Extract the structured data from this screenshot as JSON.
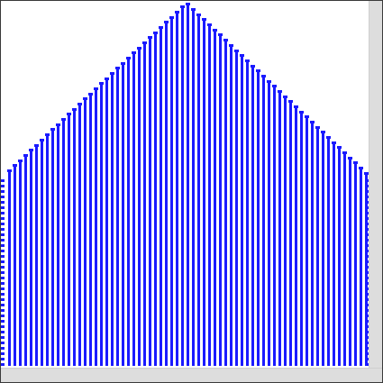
{
  "canvas": {
    "shape": "house-outline",
    "column_count": 68,
    "stripe_color": "#1a1aff",
    "background_color": "#ffffff"
  },
  "scrollbars": {
    "vertical": {
      "icon": "vertical-scrollbar"
    },
    "horizontal": {
      "icon": "horizontal-scrollbar"
    },
    "color": "#dddddd"
  }
}
